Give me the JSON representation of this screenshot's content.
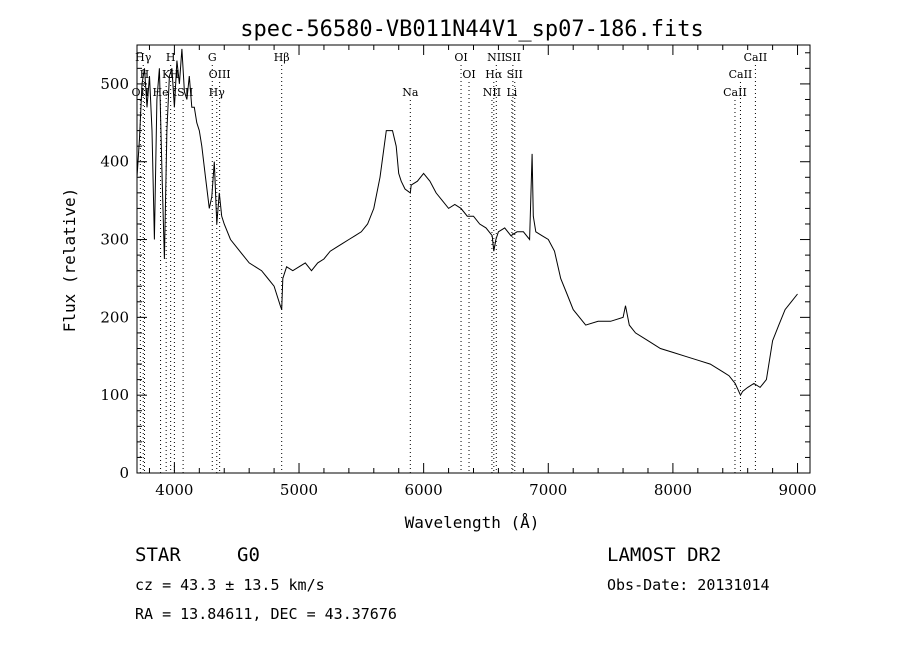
{
  "chart_data": {
    "type": "line",
    "title": "spec-56580-VB011N44V1_sp07-186.fits",
    "xlabel": "Wavelength (Å)",
    "ylabel": "Flux (relative)",
    "xlim": [
      3700,
      9100
    ],
    "ylim": [
      0,
      550
    ],
    "xticks": [
      4000,
      5000,
      6000,
      7000,
      8000,
      9000
    ],
    "yticks": [
      0,
      100,
      200,
      300,
      400,
      500
    ],
    "grid": false,
    "series": [
      {
        "x": [
          3700,
          3720,
          3740,
          3760,
          3780,
          3800,
          3820,
          3840,
          3860,
          3880,
          3900,
          3920,
          3940,
          3960,
          3980,
          4000,
          4020,
          4040,
          4060,
          4080,
          4100,
          4120,
          4140,
          4160,
          4180,
          4200,
          4220,
          4250,
          4280,
          4300,
          4320,
          4340,
          4360,
          4380,
          4400,
          4450,
          4500,
          4550,
          4600,
          4650,
          4700,
          4750,
          4800,
          4830,
          4850,
          4861,
          4870,
          4900,
          4950,
          5000,
          5050,
          5100,
          5150,
          5200,
          5250,
          5300,
          5350,
          5400,
          5450,
          5500,
          5550,
          5600,
          5650,
          5700,
          5750,
          5780,
          5800,
          5820,
          5850,
          5893,
          5900,
          5950,
          6000,
          6050,
          6100,
          6150,
          6200,
          6250,
          6300,
          6350,
          6400,
          6450,
          6500,
          6550,
          6563,
          6580,
          6600,
          6650,
          6700,
          6750,
          6800,
          6850,
          6870,
          6880,
          6900,
          6950,
          7000,
          7050,
          7100,
          7150,
          7200,
          7300,
          7400,
          7500,
          7600,
          7620,
          7650,
          7700,
          7800,
          7900,
          8000,
          8100,
          8200,
          8300,
          8400,
          8450,
          8500,
          8542,
          8560,
          8600,
          8650,
          8700,
          8750,
          8800,
          8850,
          8900,
          8950,
          9000
        ],
        "values": [
          380,
          430,
          500,
          520,
          470,
          510,
          440,
          300,
          480,
          520,
          390,
          275,
          440,
          510,
          520,
          470,
          530,
          500,
          545,
          490,
          480,
          510,
          470,
          470,
          450,
          440,
          420,
          380,
          340,
          355,
          400,
          320,
          360,
          330,
          320,
          300,
          290,
          280,
          270,
          265,
          260,
          250,
          240,
          225,
          215,
          210,
          250,
          265,
          260,
          265,
          270,
          260,
          270,
          275,
          285,
          290,
          295,
          300,
          305,
          310,
          320,
          340,
          380,
          440,
          440,
          420,
          385,
          375,
          365,
          360,
          370,
          375,
          385,
          375,
          360,
          350,
          340,
          345,
          340,
          330,
          330,
          320,
          315,
          305,
          285,
          300,
          310,
          315,
          305,
          310,
          310,
          300,
          410,
          330,
          310,
          305,
          300,
          285,
          250,
          230,
          210,
          190,
          195,
          195,
          200,
          215,
          190,
          180,
          170,
          160,
          155,
          150,
          145,
          140,
          130,
          125,
          115,
          100,
          105,
          110,
          115,
          110,
          120,
          170,
          190,
          210,
          220,
          230
        ]
      }
    ],
    "lines": [
      {
        "label": "Hγ",
        "x": 4340,
        "row": 2
      },
      {
        "label": "Hβ",
        "x": 4861,
        "row": 0
      },
      {
        "label": "G",
        "x": 4304,
        "row": 0
      },
      {
        "label": "OIII",
        "x": 4363,
        "row": 1
      },
      {
        "label": "Na",
        "x": 5893,
        "row": 2
      },
      {
        "label": "OI",
        "x": 6300,
        "row": 0
      },
      {
        "label": "OI",
        "x": 6364,
        "row": 1
      },
      {
        "label": "NII",
        "x": 6583,
        "row": 0
      },
      {
        "label": "SII",
        "x": 6716,
        "row": 0
      },
      {
        "label": "Hα",
        "x": 6563,
        "row": 1
      },
      {
        "label": "SII",
        "x": 6731,
        "row": 1
      },
      {
        "label": "NII",
        "x": 6548,
        "row": 2
      },
      {
        "label": "Li",
        "x": 6708,
        "row": 2
      },
      {
        "label": "CaII",
        "x": 8662,
        "row": 0
      },
      {
        "label": "CaII",
        "x": 8542,
        "row": 1
      },
      {
        "label": "CaII",
        "x": 8498,
        "row": 2
      },
      {
        "label": "Hγ",
        "x": 3750,
        "row": 0
      },
      {
        "label": "H",
        "x": 3970,
        "row": 0
      },
      {
        "label": "H",
        "x": 3760,
        "row": 1
      },
      {
        "label": "K",
        "x": 3934,
        "row": 1
      },
      {
        "label": "H",
        "x": 4000,
        "row": 1
      },
      {
        "label": "OII",
        "x": 3727,
        "row": 2
      },
      {
        "label": "He",
        "x": 3889,
        "row": 2
      },
      {
        "label": "ISII",
        "x": 4070,
        "row": 2
      }
    ]
  },
  "footer": {
    "object_class": "STAR",
    "subclass": "G0",
    "survey": "LAMOST DR2",
    "cz": "cz = 43.3 ± 13.5 km/s",
    "obs_date": "Obs-Date: 20131014",
    "coords": "RA =  13.84611, DEC =  43.37676"
  }
}
